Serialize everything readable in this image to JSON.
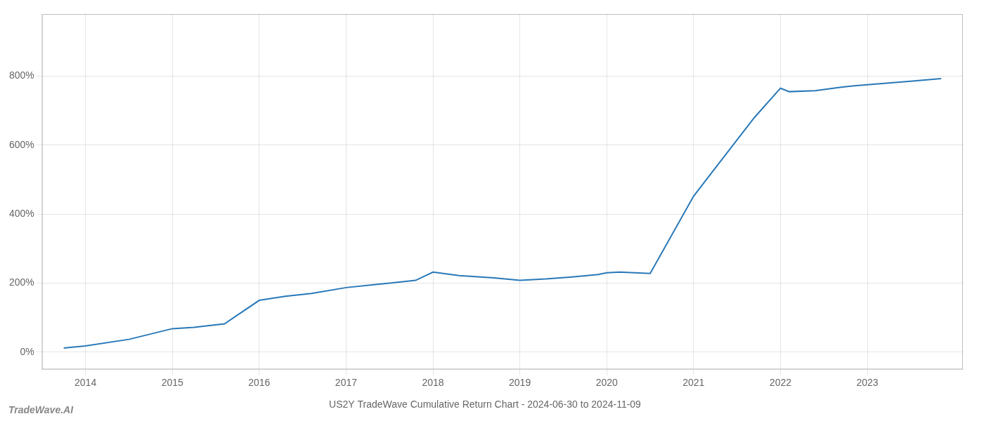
{
  "chart_data": {
    "type": "line",
    "title": "US2Y TradeWave Cumulative Return Chart - 2024-06-30 to 2024-11-09",
    "annotations": [
      "TradeWave.AI"
    ],
    "x": [
      2013.75,
      2014.0,
      2014.5,
      2015.0,
      2015.25,
      2015.6,
      2016.0,
      2016.3,
      2016.6,
      2017.0,
      2017.3,
      2017.5,
      2017.8,
      2018.0,
      2018.3,
      2018.7,
      2019.0,
      2019.3,
      2019.6,
      2019.9,
      2020.0,
      2020.15,
      2020.5,
      2021.0,
      2021.3,
      2021.7,
      2022.0,
      2022.1,
      2022.4,
      2022.7,
      2022.85,
      2023.0,
      2023.5,
      2023.85
    ],
    "values": [
      0.12,
      0.18,
      0.37,
      0.68,
      0.72,
      0.82,
      1.5,
      1.62,
      1.7,
      1.87,
      1.95,
      2.0,
      2.08,
      2.32,
      2.22,
      2.15,
      2.08,
      2.12,
      2.18,
      2.25,
      2.3,
      2.32,
      2.28,
      4.52,
      5.5,
      6.8,
      7.65,
      7.55,
      7.58,
      7.68,
      7.72,
      7.75,
      7.85,
      7.93
    ],
    "color": "#2878b8",
    "xlim": [
      2013.5,
      2024.1
    ],
    "ylim": [
      -0.5,
      9.8
    ],
    "xticks": [
      2014,
      2015,
      2016,
      2017,
      2018,
      2019,
      2020,
      2021,
      2022,
      2023
    ],
    "yticks": [
      {
        "value": 0,
        "label": "0%"
      },
      {
        "value": 2,
        "label": "200%"
      },
      {
        "value": 4,
        "label": "400%"
      },
      {
        "value": 6,
        "label": "600%"
      },
      {
        "value": 8,
        "label": "800%"
      }
    ],
    "grid": true
  }
}
